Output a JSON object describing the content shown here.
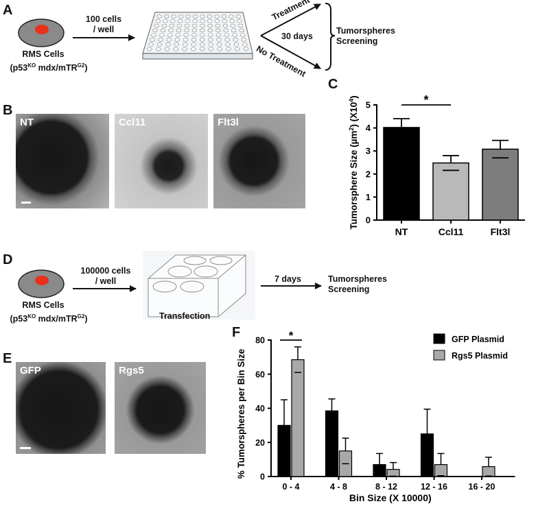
{
  "panels": {
    "A": "A",
    "B": "B",
    "C": "C",
    "D": "D",
    "E": "E",
    "F": "F"
  },
  "schematic_a": {
    "cells_label": "RMS Cells",
    "genotype_prefix": "(p53",
    "genotype_ko": "KO",
    "genotype_mid": " mdx/mTR",
    "genotype_g2": "G2",
    "genotype_suffix": ")",
    "seeding_line1": "100 cells",
    "seeding_line2": "/ well",
    "treatment": "Treatment",
    "no_treatment": "No Treatment",
    "duration": "30 days",
    "outcome_line1": "Tumorspheres",
    "outcome_line2": "Screening"
  },
  "schematic_d": {
    "cells_label": "RMS Cells",
    "genotype_prefix": "(p53",
    "genotype_ko": "KO",
    "genotype_mid": " mdx/mTR",
    "genotype_g2": "G2",
    "genotype_suffix": ")",
    "seeding_line1": "100000 cells",
    "seeding_line2": "/ well",
    "plate_caption": "Transfection",
    "duration": "7 days",
    "outcome_line1": "Tumorspheres",
    "outcome_line2": "Screening"
  },
  "images_b": [
    "NT",
    "Ccl11",
    "Flt3l"
  ],
  "images_e": [
    "GFP",
    "Rgs5"
  ],
  "colors": {
    "cell_body": "#8a8a8a",
    "nucleus": "#e8311a",
    "black_bar": "#000000",
    "light_gray_bar": "#b9b9b9",
    "mid_gray_bar": "#7d7d7d"
  },
  "chart_data": [
    {
      "type": "bar",
      "ylabel": "Tumorsphere Size (µm²) (X10⁴)",
      "ylabel_parts": {
        "main": "Tumorsphere Size (µm",
        "sq": "2",
        "mid": ") (X10",
        "exp": "4",
        "end": ")"
      },
      "categories": [
        "NT",
        "Ccl11",
        "Flt3l"
      ],
      "values": [
        4.02,
        2.48,
        3.08
      ],
      "errors": [
        0.38,
        0.32,
        0.38
      ],
      "bar_colors": [
        "#000000",
        "#b9b9b9",
        "#7d7d7d"
      ],
      "ylim": [
        0,
        5
      ],
      "yticks": [
        "0",
        "1",
        "2",
        "3",
        "4",
        "5"
      ],
      "significance": {
        "between": [
          "NT",
          "Ccl11"
        ],
        "mark": "*"
      }
    },
    {
      "type": "bar",
      "xlabel": "Bin Size (X 10000)",
      "ylabel": "% Tumorspheres per Bin Size",
      "categories": [
        "0 - 4",
        "4 - 8",
        "8 - 12",
        "12 - 16",
        "16 - 20"
      ],
      "series": [
        {
          "name": "GFP Plasmid",
          "color": "#000000",
          "values": [
            30,
            38.5,
            7,
            25,
            0
          ],
          "errors": [
            15,
            7,
            6.5,
            14.5,
            0
          ]
        },
        {
          "name": "Rgs5 Plasmid",
          "color": "#a8a8a8",
          "values": [
            68.5,
            15,
            4.2,
            7,
            5.8
          ],
          "errors": [
            7.5,
            7.5,
            4,
            6.5,
            5.5
          ]
        }
      ],
      "ylim": [
        0,
        80
      ],
      "yticks": [
        "0",
        "20",
        "40",
        "60",
        "80"
      ],
      "legend": "top-right",
      "significance": {
        "category": "0 - 4",
        "mark": "*"
      }
    }
  ]
}
